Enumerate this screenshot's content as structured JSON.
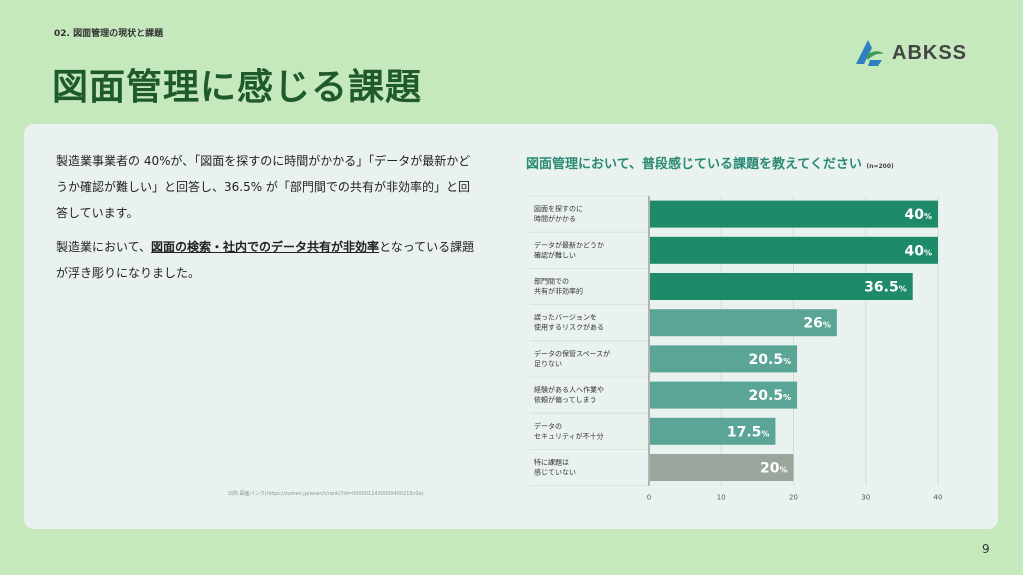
{
  "header": {
    "section_label": "02. 図面管理の現状と課題",
    "title": "図面管理に感じる課題",
    "logo_text": "ABKSS"
  },
  "body_text": {
    "p1": "製造業事業者の 40%が、「図面を探すのに時間がかかる」「データが最新かどうか確認が難しい」と回答し、36.5% が「部門間での共有が非効率的」と回答しています。",
    "p2_prefix": "製造業において、",
    "p2_emphasis": "図面の検索・社内でのデータ共有が非効率",
    "p2_suffix": "となっている課題が浮き彫りになりました。",
    "source": "出所:図面バンク(https://zumen.jp/search/rank/?id=0000011430000400219c0e)"
  },
  "page_number": "9",
  "colors": {
    "background": "#c6e8bd",
    "panel": "#eaf2ef",
    "title": "#1e5a2c",
    "bar_dark": "#1e8a6a",
    "bar_mid": "#5aa595",
    "bar_gray": "#9aa69c"
  },
  "chart_data": {
    "type": "bar",
    "orientation": "horizontal",
    "title": "図面管理において、普段感じている課題を教えてください",
    "note": "(n=200)",
    "categories": [
      [
        "図面を探すのに",
        "時間がかかる"
      ],
      [
        "データが最新かどうか",
        "確認が難しい"
      ],
      [
        "部門間での",
        "共有が非効率的"
      ],
      [
        "誤ったバージョンを",
        "使用するリスクがある"
      ],
      [
        "データの保管スペースが",
        "足りない"
      ],
      [
        "経験がある人へ作業や",
        "依頼が偏ってしまう"
      ],
      [
        "データの",
        "セキュリティが不十分"
      ],
      [
        "特に課題は",
        "感じていない"
      ]
    ],
    "values": [
      40,
      40,
      36.5,
      26,
      20.5,
      20.5,
      17.5,
      20
    ],
    "value_labels": [
      "40",
      "40",
      "36.5",
      "26",
      "20.5",
      "20.5",
      "17.5",
      "20"
    ],
    "unit": "%",
    "bar_colors": [
      "#1e8a6a",
      "#1e8a6a",
      "#1e8a6a",
      "#5aa595",
      "#5aa595",
      "#5aa595",
      "#5aa595",
      "#9aa69c"
    ],
    "x_ticks": [
      "0",
      "10",
      "20",
      "30",
      "40"
    ],
    "xlim": [
      0,
      40
    ],
    "grid": true
  }
}
